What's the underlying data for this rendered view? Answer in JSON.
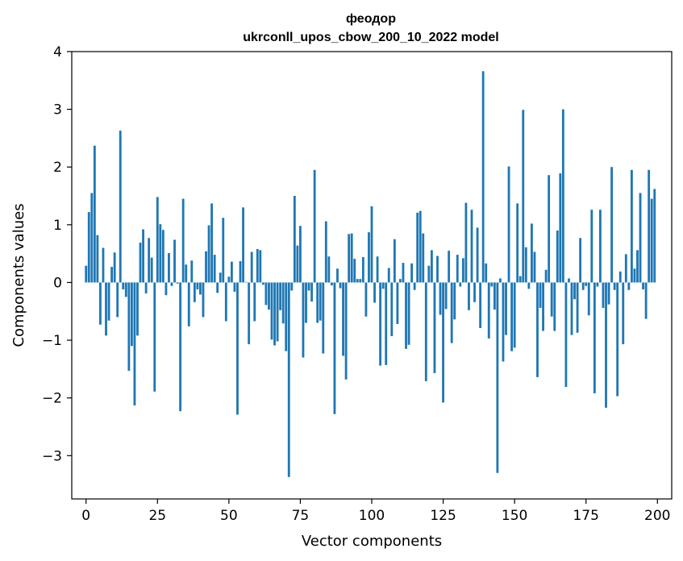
{
  "chart_data": {
    "type": "bar",
    "title": "феодор",
    "subtitle": "ukrconll_upos_cbow_200_10_2022 model",
    "xlabel": "Vector components",
    "ylabel": "Components values",
    "xlim": [
      -5,
      205
    ],
    "ylim": [
      -3.75,
      4.0
    ],
    "xticks": [
      0,
      25,
      50,
      75,
      100,
      125,
      150,
      175,
      200
    ],
    "xtick_labels": [
      "0",
      "25",
      "50",
      "75",
      "100",
      "125",
      "150",
      "175",
      "200"
    ],
    "yticks": [
      -3,
      -2,
      -1,
      0,
      1,
      2,
      3,
      4
    ],
    "ytick_labels": [
      "−3",
      "−2",
      "−1",
      "0",
      "1",
      "2",
      "3",
      "4"
    ],
    "grid": false,
    "bar_color": "#1f77b4",
    "values": [
      0.29,
      1.22,
      1.55,
      2.37,
      0.82,
      -0.73,
      0.6,
      -0.92,
      -0.66,
      0.27,
      0.52,
      -0.6,
      2.63,
      -0.12,
      -0.25,
      -1.53,
      -1.1,
      -2.13,
      -0.92,
      0.69,
      0.92,
      -0.19,
      0.77,
      0.43,
      -1.89,
      1.48,
      1.01,
      0.91,
      -0.22,
      0.51,
      -0.06,
      0.74,
      -0.02,
      -2.23,
      1.45,
      0.31,
      -0.76,
      0.38,
      -0.34,
      -0.12,
      -0.21,
      -0.6,
      0.54,
      0.99,
      1.37,
      0.48,
      -0.18,
      0.17,
      1.12,
      -0.67,
      0.1,
      0.36,
      -0.16,
      -2.29,
      0.37,
      1.3,
      0.01,
      -1.07,
      0.53,
      -0.67,
      0.58,
      0.56,
      -0.04,
      -0.39,
      -0.47,
      -0.99,
      -1.09,
      -1.02,
      -0.48,
      -0.71,
      -1.19,
      -3.37,
      -0.14,
      1.5,
      0.64,
      0.98,
      -1.3,
      -0.7,
      -0.14,
      -0.33,
      1.95,
      -0.7,
      -0.66,
      -1.23,
      1.06,
      0.45,
      -0.05,
      -2.28,
      0.24,
      -0.1,
      -1.27,
      -1.68,
      0.84,
      0.85,
      0.41,
      0.06,
      0.06,
      0.44,
      -0.59,
      0.87,
      1.32,
      -0.35,
      0.45,
      -1.44,
      -0.11,
      -1.43,
      0.25,
      -0.93,
      0.75,
      -0.72,
      0.06,
      0.34,
      -1.15,
      -1.08,
      0.33,
      -0.13,
      1.21,
      1.24,
      0.85,
      -1.71,
      0.29,
      0.56,
      -1.57,
      0.46,
      -0.56,
      -2.08,
      -0.46,
      0.55,
      -1.05,
      -0.64,
      0.48,
      -0.07,
      0.42,
      1.38,
      -0.48,
      1.26,
      -0.34,
      0.95,
      -0.79,
      3.66,
      0.33,
      -0.97,
      -0.07,
      -0.47,
      -3.3,
      0.07,
      -1.37,
      -0.91,
      2.01,
      -1.19,
      -1.13,
      1.37,
      0.11,
      2.99,
      0.61,
      -0.11,
      1.02,
      0.53,
      -1.64,
      -0.44,
      -0.84,
      0.22,
      1.86,
      -0.59,
      -0.84,
      0.9,
      1.89,
      3.0,
      -1.81,
      0.07,
      -0.91,
      -0.29,
      -0.87,
      0.77,
      -0.13,
      -0.06,
      -0.57,
      1.26,
      -1.92,
      -0.07,
      1.26,
      -0.44,
      -2.17,
      -0.38,
      2.0,
      -0.13,
      -1.97,
      0.19,
      -1.07,
      0.49,
      -0.13,
      1.95,
      0.24,
      0.56,
      1.55,
      -0.12,
      -0.63,
      1.95,
      1.45,
      1.62
    ]
  }
}
